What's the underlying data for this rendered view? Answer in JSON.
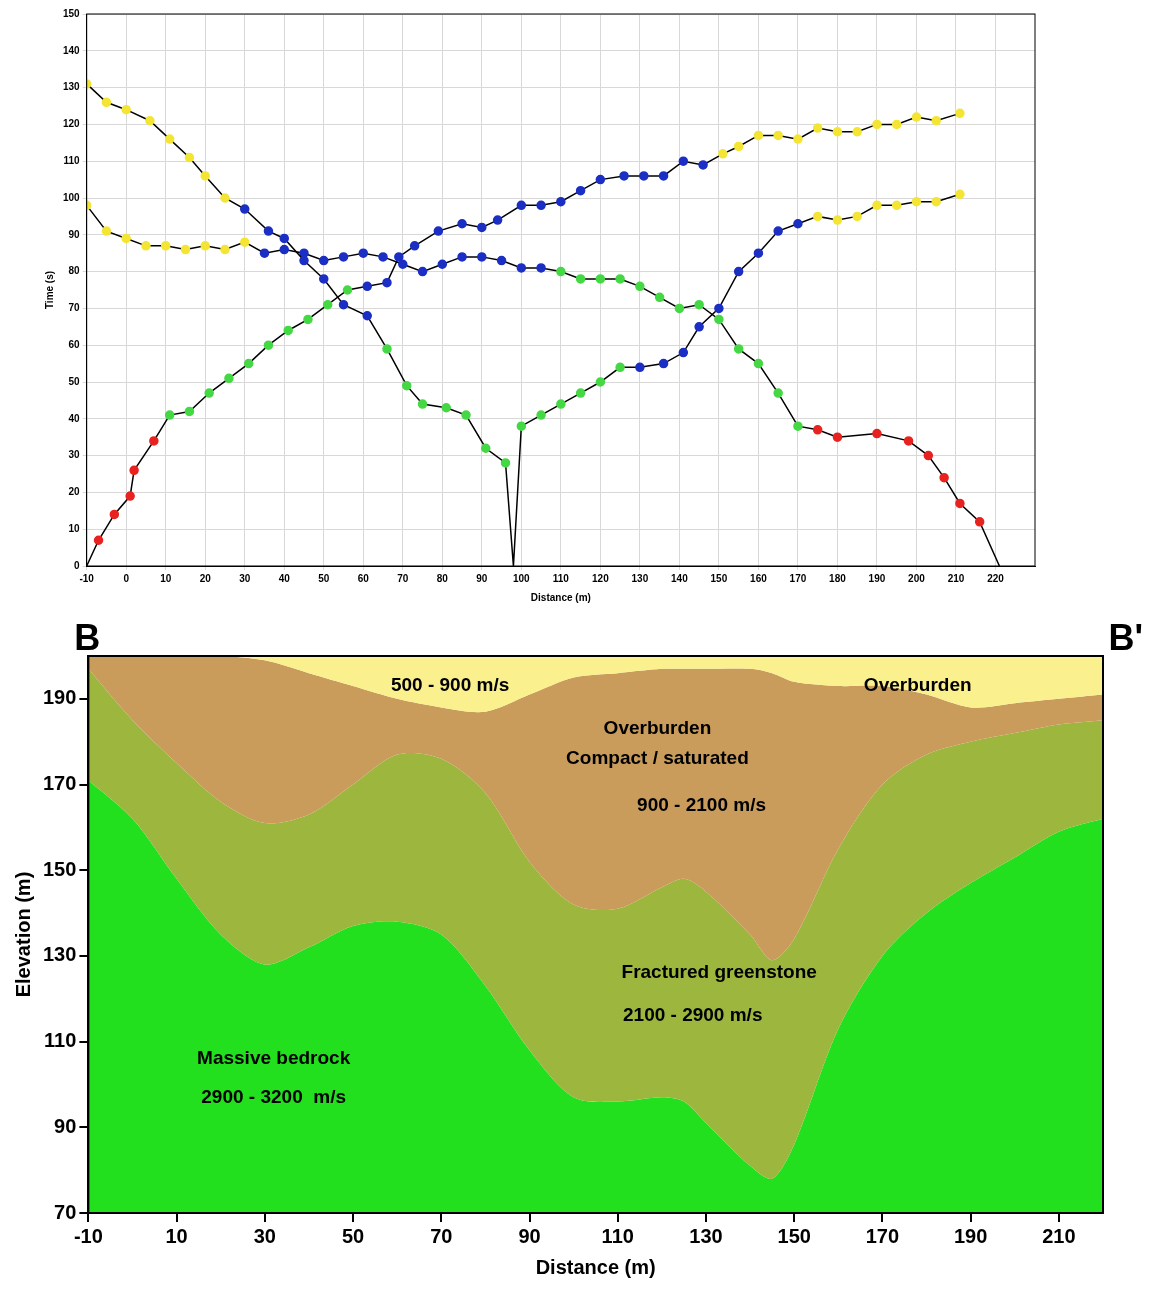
{
  "chart_data": [
    {
      "type": "line",
      "x_label": "Distance (m)",
      "y_label": "Time (s)",
      "xlim": [
        -10,
        230
      ],
      "xticks": [
        -10,
        0,
        10,
        20,
        30,
        40,
        50,
        60,
        70,
        80,
        90,
        100,
        110,
        120,
        130,
        140,
        150,
        160,
        170,
        180,
        190,
        200,
        210,
        220
      ],
      "ylim": [
        0,
        150
      ],
      "yticks": [
        0,
        10,
        20,
        30,
        40,
        50,
        60,
        70,
        80,
        90,
        100,
        110,
        120,
        130,
        140,
        150
      ],
      "grid": true,
      "marker": "circle",
      "line_style": "solid",
      "series": [
        {
          "color": "#000000",
          "x": [
            -10,
            -7,
            -3,
            1,
            2,
            7,
            11,
            16,
            21,
            26,
            31,
            36,
            41,
            46,
            51,
            56,
            61,
            66,
            69,
            73,
            79,
            85,
            90,
            94,
            100,
            105,
            110,
            115,
            120,
            126,
            131,
            136,
            141,
            146,
            151,
            155,
            160,
            165,
            170,
            175,
            180,
            185,
            190,
            195,
            200,
            205,
            211
          ],
          "values": [
            0,
            7,
            14,
            19,
            26,
            34,
            41,
            42,
            47,
            51,
            55,
            60,
            64,
            67,
            71,
            75,
            76,
            77,
            84,
            87,
            91,
            93,
            92,
            94,
            98,
            98,
            99,
            102,
            105,
            106,
            106,
            106,
            110,
            109,
            112,
            114,
            117,
            117,
            116,
            119,
            118,
            118,
            120,
            120,
            122,
            121,
            123
          ],
          "colors": [
            null,
            "#e8231f",
            "#e8231f",
            "#e8231f",
            "#e8231f",
            "#e8231f",
            "#45d845",
            "#45d845",
            "#45d845",
            "#45d845",
            "#45d845",
            "#45d845",
            "#45d845",
            "#45d845",
            "#45d845",
            "#45d845",
            "#1c2fc4",
            "#1c2fc4",
            "#1c2fc4",
            "#1c2fc4",
            "#1c2fc4",
            "#1c2fc4",
            "#1c2fc4",
            "#1c2fc4",
            "#1c2fc4",
            "#1c2fc4",
            "#1c2fc4",
            "#1c2fc4",
            "#1c2fc4",
            "#1c2fc4",
            "#1c2fc4",
            "#1c2fc4",
            "#1c2fc4",
            "#1c2fc4",
            "#f4e534",
            "#f4e534",
            "#f4e534",
            "#f4e534",
            "#f4e534",
            "#f4e534",
            "#f4e534",
            "#f4e534",
            "#f4e534",
            "#f4e534",
            "#f4e534",
            "#f4e534",
            "#f4e534"
          ]
        },
        {
          "color": "#000000",
          "x": [
            -10,
            -5,
            0,
            6,
            11,
            16,
            20,
            25,
            30,
            36,
            40,
            45,
            50,
            55,
            61,
            66,
            71,
            75,
            81,
            86,
            91,
            96,
            98,
            100,
            105,
            110,
            115,
            120,
            125,
            130,
            136,
            141,
            145,
            150,
            155,
            160,
            165,
            170,
            175,
            180,
            185,
            190,
            195,
            200,
            205,
            211
          ],
          "values": [
            131,
            126,
            124,
            121,
            116,
            111,
            106,
            100,
            97,
            91,
            89,
            83,
            78,
            71,
            68,
            59,
            49,
            44,
            43,
            41,
            32,
            28,
            0,
            38,
            41,
            44,
            47,
            50,
            54,
            54,
            55,
            58,
            65,
            70,
            80,
            85,
            91,
            93,
            95,
            94,
            95,
            98,
            98,
            99,
            99,
            101
          ],
          "colors": [
            "#f4e534",
            "#f4e534",
            "#f4e534",
            "#f4e534",
            "#f4e534",
            "#f4e534",
            "#f4e534",
            "#f4e534",
            "#1c2fc4",
            "#1c2fc4",
            "#1c2fc4",
            "#1c2fc4",
            "#1c2fc4",
            "#1c2fc4",
            "#1c2fc4",
            "#45d845",
            "#45d845",
            "#45d845",
            "#45d845",
            "#45d845",
            "#45d845",
            "#45d845",
            null,
            "#45d845",
            "#45d845",
            "#45d845",
            "#45d845",
            "#45d845",
            "#45d845",
            "#1c2fc4",
            "#1c2fc4",
            "#1c2fc4",
            "#1c2fc4",
            "#1c2fc4",
            "#1c2fc4",
            "#1c2fc4",
            "#1c2fc4",
            "#1c2fc4",
            "#f4e534",
            "#f4e534",
            "#f4e534",
            "#f4e534",
            "#f4e534",
            "#f4e534",
            "#f4e534",
            "#f4e534"
          ]
        },
        {
          "color": "#000000",
          "x": [
            -10,
            -5,
            0,
            5,
            10,
            15,
            20,
            25,
            30,
            35,
            40,
            45,
            50,
            55,
            60,
            65,
            70,
            75,
            80,
            85,
            90,
            95,
            100,
            105,
            110,
            115,
            120,
            125,
            130,
            135,
            140,
            145,
            150,
            155,
            160,
            165,
            170,
            175,
            180,
            190,
            198,
            203,
            207,
            211,
            216,
            221
          ],
          "values": [
            98,
            91,
            89,
            87,
            87,
            86,
            87,
            86,
            88,
            85,
            86,
            85,
            83,
            84,
            85,
            84,
            82,
            80,
            82,
            84,
            84,
            83,
            81,
            81,
            80,
            78,
            78,
            78,
            76,
            73,
            70,
            71,
            67,
            59,
            55,
            47,
            38,
            37,
            35,
            36,
            34,
            30,
            24,
            17,
            12,
            0
          ],
          "colors": [
            "#f4e534",
            "#f4e534",
            "#f4e534",
            "#f4e534",
            "#f4e534",
            "#f4e534",
            "#f4e534",
            "#f4e534",
            "#f4e534",
            "#1c2fc4",
            "#1c2fc4",
            "#1c2fc4",
            "#1c2fc4",
            "#1c2fc4",
            "#1c2fc4",
            "#1c2fc4",
            "#1c2fc4",
            "#1c2fc4",
            "#1c2fc4",
            "#1c2fc4",
            "#1c2fc4",
            "#1c2fc4",
            "#1c2fc4",
            "#1c2fc4",
            "#45d845",
            "#45d845",
            "#45d845",
            "#45d845",
            "#45d845",
            "#45d845",
            "#45d845",
            "#45d845",
            "#45d845",
            "#45d845",
            "#45d845",
            "#45d845",
            "#45d845",
            "#e8231f",
            "#e8231f",
            "#e8231f",
            "#e8231f",
            "#e8231f",
            "#e8231f",
            "#e8231f",
            "#e8231f",
            null
          ]
        }
      ]
    },
    {
      "type": "area",
      "x_label": "Distance (m)",
      "y_label": "Elevation (m)",
      "start_label": "B",
      "end_label": "B'",
      "xlim": [
        -10,
        220
      ],
      "xticks": [
        -10,
        10,
        30,
        50,
        70,
        90,
        110,
        130,
        150,
        170,
        190,
        210
      ],
      "ylim": [
        70,
        200
      ],
      "yticks": [
        70,
        90,
        110,
        130,
        150,
        170,
        190
      ],
      "grid": false,
      "stacked": false,
      "x": [
        -10,
        0,
        10,
        20,
        30,
        40,
        50,
        60,
        70,
        80,
        90,
        100,
        110,
        120,
        125,
        130,
        140,
        145,
        150,
        160,
        170,
        180,
        190,
        200,
        210,
        220
      ],
      "series": [
        {
          "color": "#fbf08e",
          "values": [
            200,
            200,
            200,
            200,
            199,
            196,
            193,
            190,
            188,
            187,
            191,
            195,
            196,
            197,
            197,
            197,
            197,
            196,
            194,
            193,
            193,
            191,
            188,
            189,
            190,
            191
          ]
        },
        {
          "color": "#c99c5c",
          "values": [
            197,
            185,
            175,
            166,
            161,
            163,
            170,
            177,
            176,
            168,
            152,
            142,
            141,
            146,
            148,
            145,
            135,
            129,
            134,
            155,
            170,
            177,
            180,
            182,
            184,
            185
          ]
        },
        {
          "color": "#9cb63e",
          "values": [
            171,
            162,
            148,
            135,
            128,
            132,
            137,
            138,
            135,
            123,
            108,
            97,
            96,
            97,
            96,
            91,
            81,
            78,
            86,
            113,
            130,
            140,
            147,
            153,
            159,
            162
          ]
        },
        {
          "color": "#22e01e",
          "values": [
            70,
            70,
            70,
            70,
            70,
            70,
            70,
            70,
            70,
            70,
            70,
            70,
            70,
            70,
            70,
            70,
            70,
            70,
            70,
            70,
            70,
            70,
            70,
            70,
            70,
            70
          ]
        }
      ],
      "annotations": [
        {
          "text": "500 - 900 m/s",
          "x": 72,
          "y": 193
        },
        {
          "text": "Overburden",
          "x": 178,
          "y": 193
        },
        {
          "text": "Overburden",
          "x": 119,
          "y": 183
        },
        {
          "text": "Compact / saturated",
          "x": 119,
          "y": 176
        },
        {
          "text": "900 - 2100 m/s",
          "x": 129,
          "y": 165
        },
        {
          "text": "Fractured greenstone",
          "x": 133,
          "y": 126
        },
        {
          "text": "2100 - 2900 m/s",
          "x": 127,
          "y": 116
        },
        {
          "text": "Massive bedrock",
          "x": 32,
          "y": 106
        },
        {
          "text": "2900 - 3200  m/s",
          "x": 32,
          "y": 97
        }
      ]
    }
  ]
}
